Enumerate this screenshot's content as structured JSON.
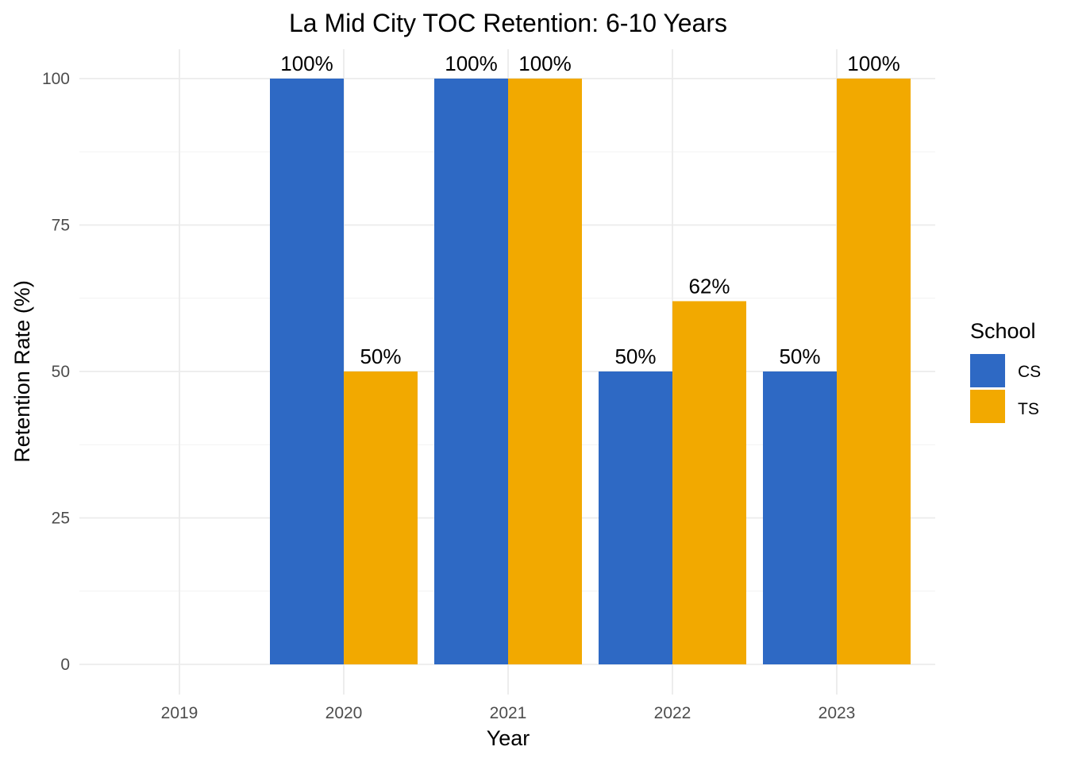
{
  "chart_data": {
    "type": "bar",
    "title": "La Mid City TOC Retention: 6-10 Years",
    "xlabel": "Year",
    "ylabel": "Retention Rate (%)",
    "categories": [
      "2019",
      "2020",
      "2021",
      "2022",
      "2023"
    ],
    "ylim": [
      0,
      105
    ],
    "yticks": [
      0,
      25,
      50,
      75,
      100
    ],
    "series": [
      {
        "name": "CS",
        "color": "#2E69C4",
        "values": [
          null,
          100,
          100,
          50,
          50
        ],
        "labels": [
          "",
          "100%",
          "100%",
          "50%",
          "50%"
        ]
      },
      {
        "name": "TS",
        "color": "#F2A900",
        "values": [
          null,
          50,
          100,
          62,
          100
        ],
        "labels": [
          "",
          "50%",
          "100%",
          "62%",
          "100%"
        ]
      }
    ],
    "legend": {
      "title": "School",
      "placement": "right"
    },
    "grid": true
  }
}
